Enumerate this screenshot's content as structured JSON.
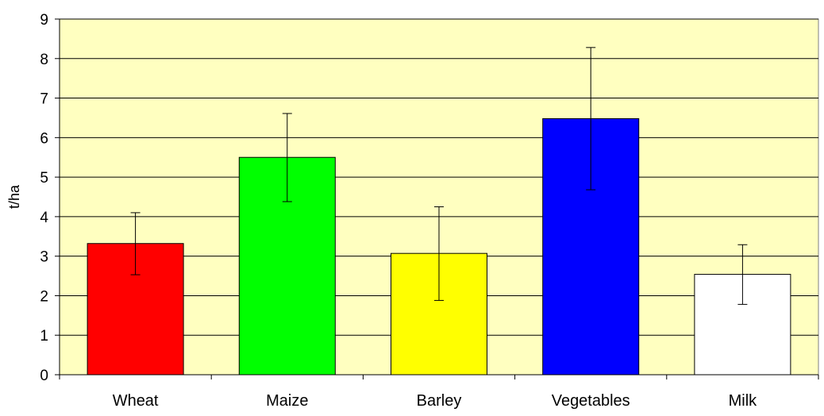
{
  "chart_data": {
    "type": "bar",
    "title": "",
    "xlabel": "",
    "ylabel": "t/ha",
    "categories": [
      "Wheat",
      "Maize",
      "Barley",
      "Vegetables",
      "Milk"
    ],
    "values": [
      3.32,
      5.5,
      3.07,
      6.48,
      2.54
    ],
    "error_bars": {
      "low": [
        2.53,
        4.38,
        1.88,
        4.68,
        1.78
      ],
      "high": [
        4.1,
        6.61,
        4.25,
        8.28,
        3.29
      ]
    },
    "bar_colors": [
      "#ff0000",
      "#00ff00",
      "#ffff00",
      "#0000ff",
      "#ffffff"
    ],
    "plot_background": "#ffffc0",
    "ylim": [
      0,
      9
    ],
    "yticks": [
      0,
      1,
      2,
      3,
      4,
      5,
      6,
      7,
      8,
      9
    ],
    "ytick_labels": [
      "0",
      "1",
      "2",
      "3",
      "4",
      "5",
      "6",
      "7",
      "8",
      "9"
    ],
    "grid": true,
    "legend": "none"
  }
}
